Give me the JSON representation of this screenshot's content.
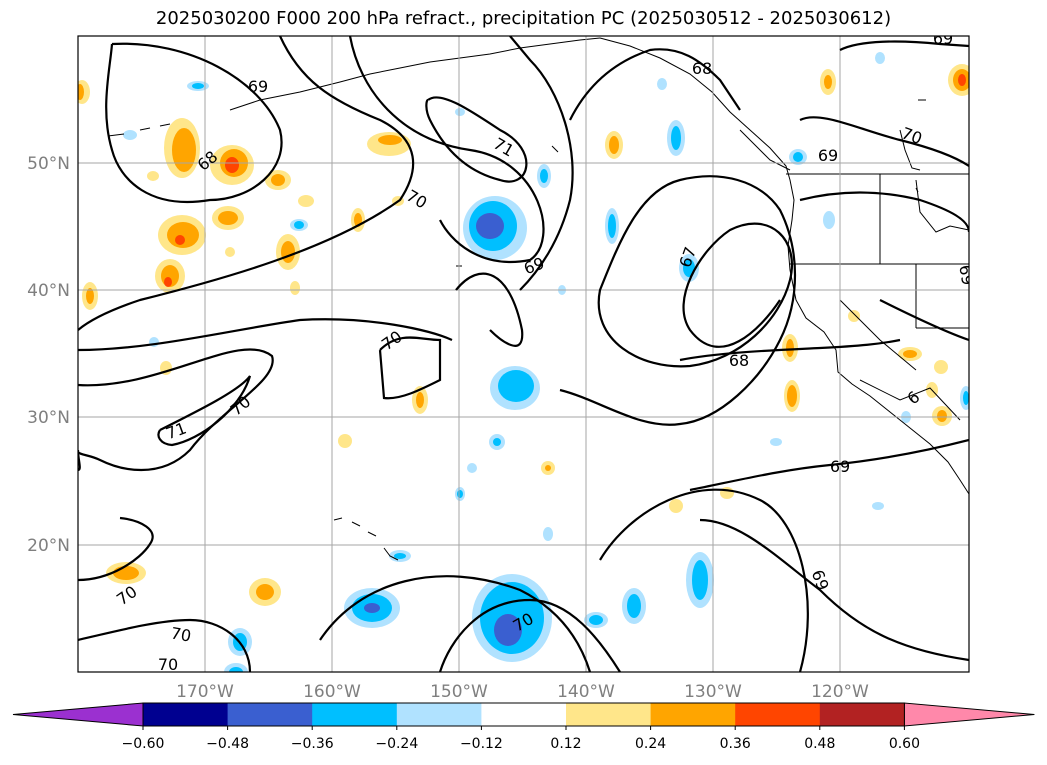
{
  "title": "2025030200 F000 200 hPa refract., precipitation PC (2025030512 - 2025030612)",
  "lon_labels": [
    "170°W",
    "160°W",
    "150°W",
    "140°W",
    "130°W",
    "120°W"
  ],
  "lat_labels": [
    "50°N",
    "40°N",
    "30°N",
    "20°N"
  ],
  "contour_labels": [
    "69",
    "68",
    "70",
    "71",
    "69",
    "70",
    "68",
    "69",
    "69",
    "67",
    "70",
    "68",
    "71",
    "70",
    "70",
    "70",
    "70",
    "69",
    "70",
    "69",
    "6",
    "69"
  ],
  "colorbar": {
    "ticks": [
      "−0.60",
      "−0.48",
      "−0.36",
      "−0.24",
      "−0.12",
      "0.12",
      "0.24",
      "0.36",
      "0.48",
      "0.60"
    ],
    "colors": [
      "#9b30d0",
      "#000090",
      "#3a5fd0",
      "#00bfff",
      "#b0e2ff",
      "#ffffff",
      "#ffe68a",
      "#ffa500",
      "#ff4500",
      "#b22222",
      "#ff88aa"
    ]
  }
}
